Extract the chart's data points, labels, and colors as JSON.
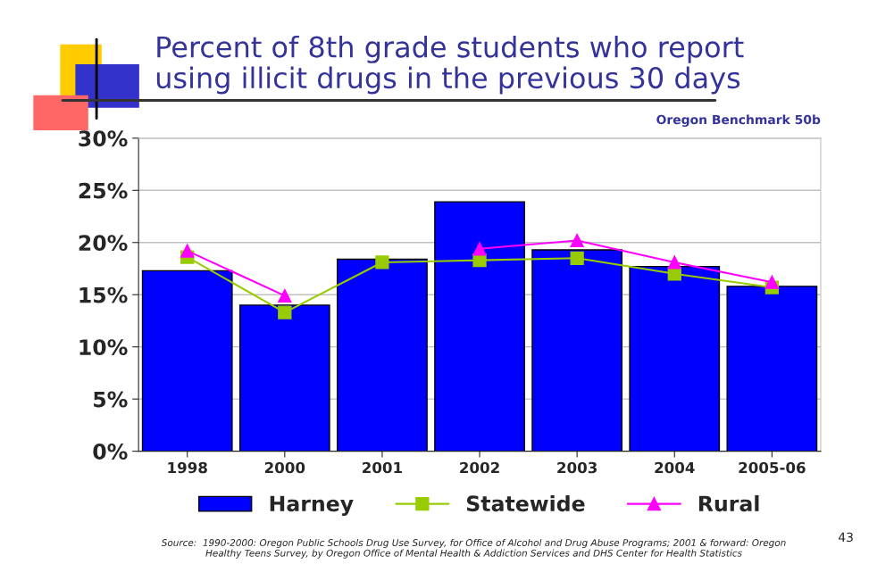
{
  "chart_data": {
    "type": "bar",
    "title": "Percent of 8th grade students who report\nusing illicit drugs in the previous 30 days",
    "subtitle": "Oregon Benchmark 50b",
    "categories": [
      "1998",
      "2000",
      "2001",
      "2002",
      "2003",
      "2004",
      "2005-06"
    ],
    "series": [
      {
        "name": "Harney",
        "color": "#0000ff",
        "values": [
          17.3,
          14.0,
          18.4,
          23.9,
          19.3,
          17.7,
          15.8
        ]
      },
      {
        "name": "Statewide",
        "type": "line",
        "color": "#99cc00",
        "marker": "square",
        "values": [
          18.6,
          13.3,
          18.1,
          18.3,
          18.5,
          17.0,
          15.7
        ]
      },
      {
        "name": "Rural",
        "type": "line",
        "color": "#ff00ff",
        "marker": "triangle",
        "values": [
          19.2,
          14.9,
          null,
          19.4,
          20.2,
          18.1,
          16.2
        ]
      }
    ],
    "ylim": [
      0,
      30
    ],
    "yticks": [
      {
        "value": 0,
        "label": "0%"
      },
      {
        "value": 5,
        "label": "5%"
      },
      {
        "value": 10,
        "label": "10%"
      },
      {
        "value": 15,
        "label": "15%"
      },
      {
        "value": 20,
        "label": "20%"
      },
      {
        "value": 25,
        "label": "25%"
      },
      {
        "value": 30,
        "label": "30%"
      }
    ],
    "grid": "y",
    "legend": "bottom",
    "annotations": [
      "Source:  1990-2000: Oregon Public Schools Drug Use Survey, for Office of Alcohol and Drug Abuse Programs; 2001 & forward: Oregon\nHealthy Teens Survey, by Oregon Office of Mental Health & Addiction Services and DHS Center for Health Statistics",
      "43"
    ]
  }
}
